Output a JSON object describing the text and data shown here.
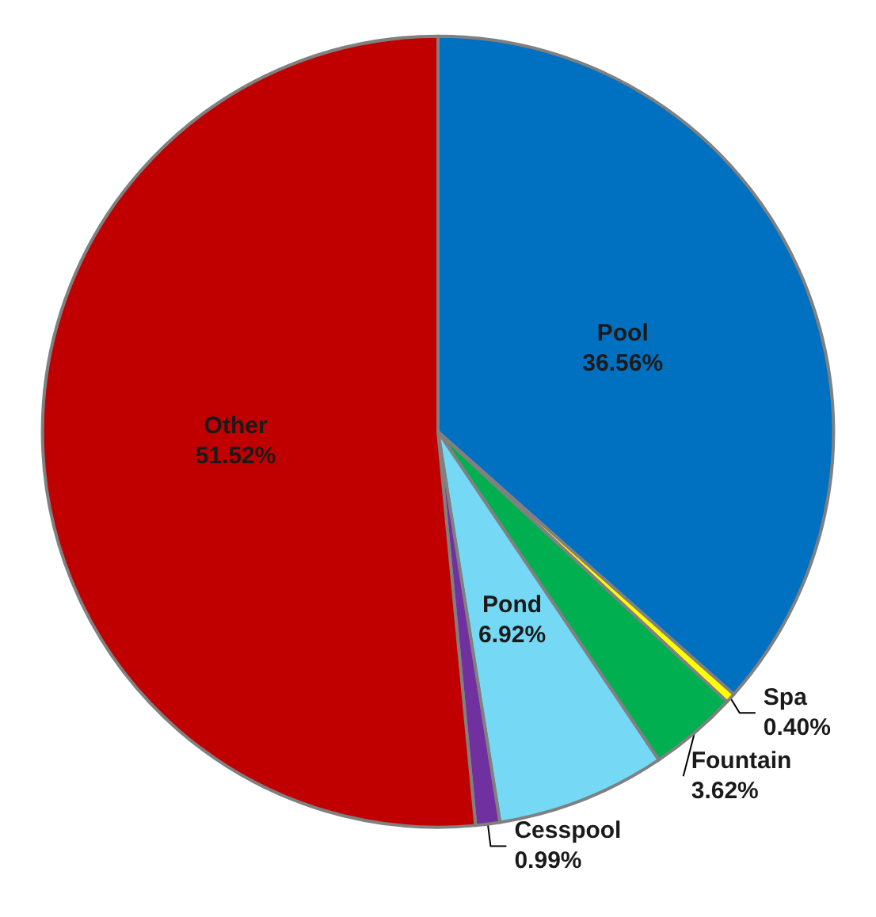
{
  "chart_data": {
    "type": "pie",
    "categories": [
      "Pool",
      "Spa",
      "Fountain",
      "Pond",
      "Cesspool",
      "Other"
    ],
    "values": [
      36.56,
      0.4,
      3.62,
      6.92,
      0.99,
      51.52
    ],
    "colors": [
      "#0070c0",
      "#ffff00",
      "#00b050",
      "#75d8f5",
      "#7030a0",
      "#c00000"
    ],
    "value_labels": [
      "36.56%",
      "0.40%",
      "3.62%",
      "6.92%",
      "0.99%",
      "51.52%"
    ],
    "legend": false
  }
}
